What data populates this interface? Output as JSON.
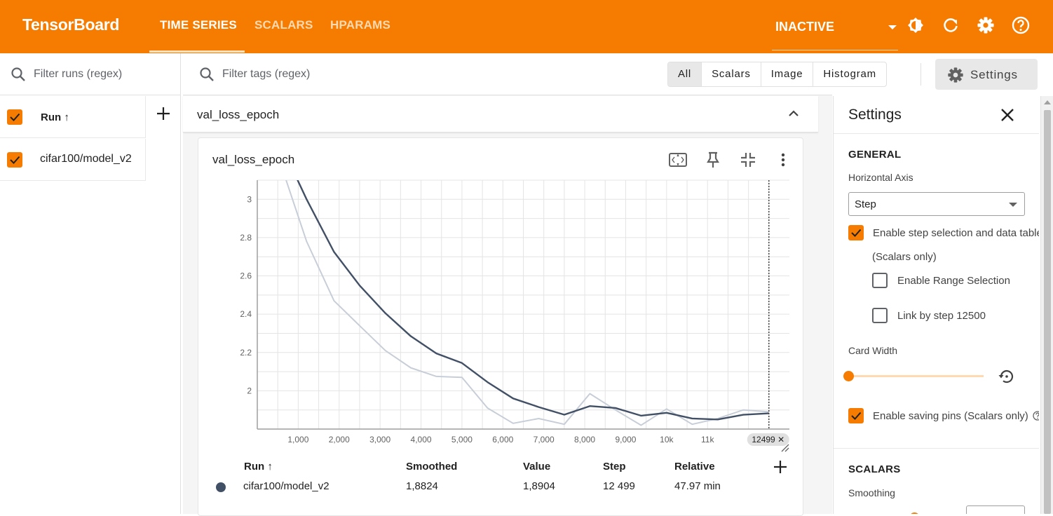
{
  "app": {
    "brand": "TensorBoard",
    "nav_tabs": [
      {
        "label": "TIME SERIES"
      },
      {
        "label": "SCALARS"
      },
      {
        "label": "HPARAMS"
      }
    ],
    "status_select": "INACTIVE",
    "accent_color": "#f57c00"
  },
  "runs": {
    "filter_placeholder": "Filter runs (regex)",
    "header_label": "Run ↑",
    "items": [
      {
        "name": "cifar100/model_v2",
        "checked": true,
        "color": "#425066"
      }
    ]
  },
  "toolbar": {
    "tag_filter_placeholder": "Filter tags (regex)",
    "type_buttons": [
      "All",
      "Scalars",
      "Image",
      "Histogram"
    ],
    "settings_label": "Settings"
  },
  "group": {
    "title": "val_loss_epoch"
  },
  "card": {
    "title": "val_loss_epoch",
    "selected_step_chip": "12499 ✕"
  },
  "chart_data": {
    "type": "line",
    "xlabel": "",
    "ylabel": "",
    "x_tick_labels": [
      "1,000",
      "2,000",
      "3,000",
      "4,000",
      "5,000",
      "6,000",
      "7,000",
      "8,000",
      "9,000",
      "10k",
      "11k"
    ],
    "y_tick_labels": [
      "2",
      "2.2",
      "2.4",
      "2.6",
      "2.8",
      "3"
    ],
    "xlim": [
      0,
      13000
    ],
    "ylim": [
      1.8,
      3.1
    ],
    "x_ticks": [
      1000,
      2000,
      3000,
      4000,
      5000,
      6000,
      7000,
      8000,
      9000,
      10000,
      11000
    ],
    "y_ticks": [
      2.0,
      2.2,
      2.4,
      2.6,
      2.8,
      3.0
    ],
    "selected_step": 12499,
    "grid": true,
    "series": [
      {
        "name": "cifar100/model_v2 (raw)",
        "color": "#c8ced8",
        "x": [
          0,
          1205,
          1875,
          2500,
          3130,
          3750,
          4375,
          5000,
          5625,
          6250,
          6875,
          7500,
          8125,
          8750,
          9375,
          10000,
          10625,
          11250,
          11875,
          12499
        ],
        "y": [
          3.55,
          2.78,
          2.47,
          2.34,
          2.21,
          2.12,
          2.075,
          2.07,
          1.91,
          1.83,
          1.855,
          1.825,
          1.985,
          1.9,
          1.82,
          1.905,
          1.825,
          1.855,
          1.9,
          1.89
        ]
      },
      {
        "name": "cifar100/model_v2",
        "color": "#425066",
        "x": [
          0,
          1205,
          1875,
          2500,
          3130,
          3750,
          4375,
          5000,
          5625,
          6250,
          6875,
          7500,
          8125,
          8750,
          9375,
          10000,
          10625,
          11250,
          11875,
          12499
        ],
        "y": [
          3.55,
          3.0,
          2.725,
          2.55,
          2.405,
          2.285,
          2.195,
          2.145,
          2.045,
          1.96,
          1.915,
          1.875,
          1.92,
          1.91,
          1.87,
          1.885,
          1.855,
          1.85,
          1.875,
          1.882
        ]
      }
    ]
  },
  "data_table": {
    "headers": {
      "run": "Run ↑",
      "smoothed": "Smoothed",
      "value": "Value",
      "step": "Step",
      "relative": "Relative"
    },
    "rows": [
      {
        "run": "cifar100/model_v2",
        "smoothed": "1,8824",
        "value": "1,8904",
        "step": "12 499",
        "relative": "47.97 min"
      }
    ]
  },
  "settings": {
    "title": "Settings",
    "general_label": "GENERAL",
    "horizontal_axis_label": "Horizontal Axis",
    "horizontal_axis_value": "Step",
    "step_selection_label": "Enable step selection and data table",
    "scalars_only_note": "(Scalars only)",
    "range_selection_label": "Enable Range Selection",
    "link_by_step_label": "Link by step 12500",
    "card_width_label": "Card Width",
    "saving_pins_label": "Enable saving pins (Scalars only)",
    "scalars_label": "SCALARS",
    "smoothing_label": "Smoothing"
  }
}
